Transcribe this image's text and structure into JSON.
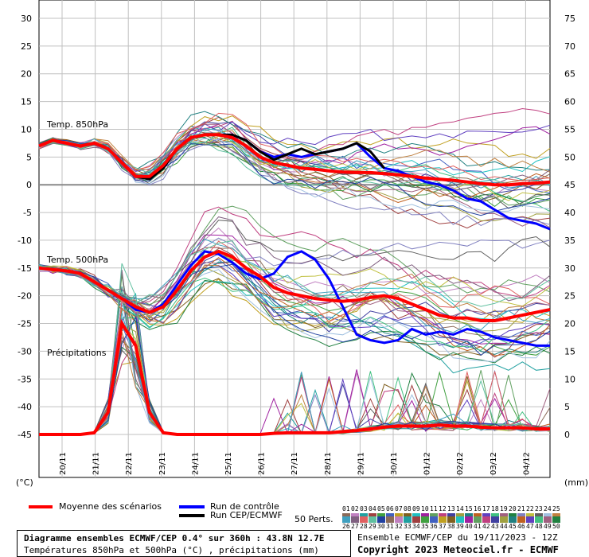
{
  "chart_data": {
    "type": "line",
    "title": "Diagramme ensembles ECMWF/CEP 0.4° sur 360h : 43.8N 12.7E",
    "subtitle": "Températures 850hPa et 500hPa (°C) , précipitations (mm)",
    "left_axis_unit": "(°C)",
    "right_axis_unit": "(mm)",
    "left_ticks": [
      30,
      25,
      20,
      15,
      10,
      5,
      0,
      -5,
      -10,
      -15,
      -20,
      -25,
      -30,
      -35,
      -40,
      -45
    ],
    "right_ticks": [
      75,
      70,
      65,
      60,
      55,
      50,
      45,
      40,
      35,
      30,
      25,
      20,
      15,
      10,
      5,
      0
    ],
    "x_dates": [
      "20/11",
      "21/11",
      "22/11",
      "23/11",
      "24/11",
      "25/11",
      "26/11",
      "27/11",
      "28/11",
      "29/11",
      "30/11",
      "01/12",
      "02/12",
      "03/12",
      "04/12"
    ],
    "section_labels": [
      "Temp. 850hPa",
      "Temp. 500hPa",
      "Précipitations"
    ],
    "series": [
      {
        "name": "Moyenne des scénarios",
        "color": "#ff0000",
        "t850": [
          7,
          8,
          7.5,
          7,
          7.5,
          6.5,
          4,
          1.5,
          1.5,
          3.5,
          6.5,
          8.5,
          9,
          9,
          8.5,
          7,
          5,
          4,
          3.5,
          3,
          2.8,
          2.5,
          2.3,
          2.2,
          2.2,
          2,
          1.8,
          1.5,
          1.2,
          1,
          0.8,
          0.5,
          0.2,
          0,
          0,
          0.2,
          0.3,
          0.5
        ],
        "t500": [
          -15,
          -15.3,
          -15.5,
          -16,
          -17.5,
          -19,
          -20.5,
          -22,
          -23,
          -22,
          -19,
          -15.5,
          -13,
          -12,
          -13,
          -15,
          -16.5,
          -18.5,
          -19.5,
          -20,
          -20.5,
          -20.8,
          -21,
          -20.8,
          -20.3,
          -20,
          -20.5,
          -21.5,
          -22.5,
          -23.5,
          -24,
          -24,
          -24.5,
          -24.5,
          -24,
          -23.5,
          -23,
          -22.5
        ],
        "precip": [
          0,
          0,
          0,
          0,
          0.3,
          4,
          20,
          16,
          4,
          0.3,
          0,
          0,
          0,
          0,
          0,
          0,
          0,
          0.2,
          0.3,
          0.3,
          0.3,
          0.3,
          0.5,
          0.7,
          1,
          1.3,
          1.5,
          1.5,
          1.5,
          1.7,
          1.5,
          1.5,
          1.3,
          1.2,
          1.2,
          1.2,
          1,
          1
        ]
      },
      {
        "name": "Run de contrôle",
        "color": "#0000ff",
        "t850": [
          7,
          8,
          7.5,
          7,
          7.5,
          6.5,
          4,
          1.5,
          1,
          3,
          6.5,
          8.5,
          9,
          9,
          9,
          8,
          6,
          5,
          5.5,
          5,
          5.5,
          6,
          6.5,
          7.5,
          5,
          3,
          2.5,
          1.5,
          0.5,
          0,
          -1,
          -2.5,
          -3,
          -4.5,
          -6,
          -6.5,
          -7,
          -8
        ],
        "t500": [
          -15,
          -15.3,
          -15.5,
          -16,
          -17.5,
          -19,
          -20.5,
          -22.5,
          -23,
          -21.5,
          -18,
          -14.5,
          -12,
          -12.5,
          -14,
          -16,
          -17,
          -16,
          -13,
          -12,
          -13.5,
          -17,
          -22,
          -27,
          -28,
          -28.5,
          -28,
          -26,
          -27,
          -26.5,
          -27,
          -26,
          -26.5,
          -27.5,
          -28,
          -28.5,
          -29,
          -29
        ]
      },
      {
        "name": "Run CEP/ECMWF",
        "color": "#000000",
        "t850": [
          7,
          8,
          7.5,
          7,
          7.5,
          6.5,
          4,
          1.5,
          1,
          3,
          6.5,
          8.5,
          9,
          9,
          9,
          8,
          6,
          4.5,
          5.5,
          6.5,
          5.5,
          6,
          6.5,
          7.5,
          6,
          3
        ]
      },
      {
        "name": "50 Perts.",
        "color": "#808080"
      }
    ],
    "legend_placement": "bottom",
    "perturbation_labels": [
      "01",
      "02",
      "03",
      "04",
      "05",
      "06",
      "07",
      "08",
      "09",
      "10",
      "11",
      "12",
      "13",
      "14",
      "15",
      "16",
      "17",
      "18",
      "19",
      "20",
      "21",
      "22",
      "23",
      "24",
      "25",
      "26",
      "27",
      "28",
      "29",
      "30",
      "31",
      "32",
      "33",
      "34",
      "35",
      "36",
      "37",
      "38",
      "39",
      "40",
      "41",
      "42",
      "43",
      "44",
      "45",
      "46",
      "47",
      "48",
      "49",
      "50"
    ],
    "ylim_left": [
      -55,
      30
    ],
    "ylim_right": [
      -25,
      75
    ],
    "grid": true
  },
  "footer": {
    "ensemble_info": "Ensemble ECMWF/CEP du 19/11/2023 - 12Z",
    "copyright": "Copyright 2023 Meteociel.fr - ECMWF"
  },
  "colors": {
    "mean": "#ff0000",
    "control": "#0000ff",
    "operational": "#000000",
    "grid": "#c0c0c0"
  }
}
